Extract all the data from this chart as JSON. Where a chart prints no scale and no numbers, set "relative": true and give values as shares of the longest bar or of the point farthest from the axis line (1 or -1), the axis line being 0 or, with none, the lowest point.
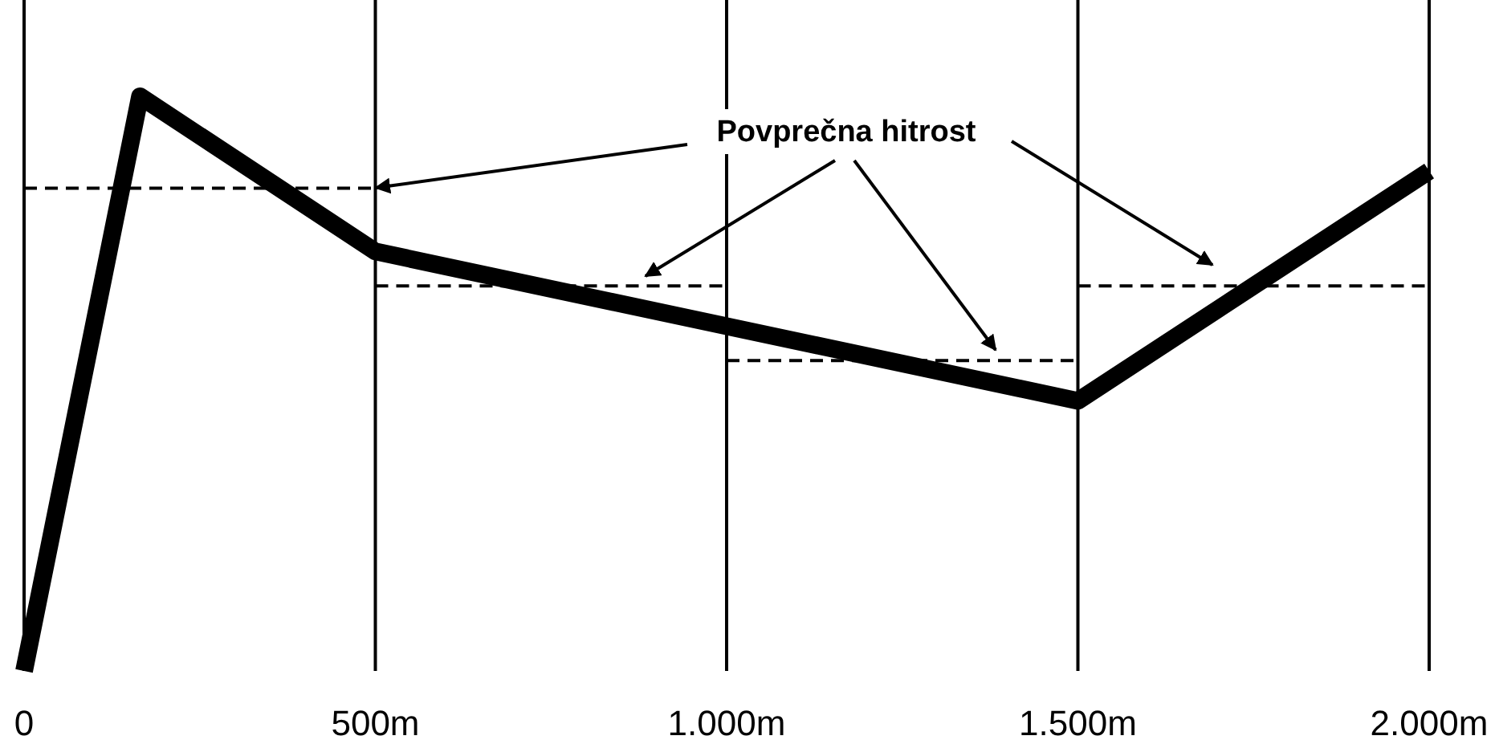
{
  "chart_data": {
    "type": "line",
    "relative": true,
    "xlim": [
      0,
      2000
    ],
    "xticks": [
      0,
      {
        "value": 500,
        "label": "500m"
      },
      {
        "value": 1000,
        "label": "1.000m"
      },
      {
        "value": 1500,
        "label": "1.500m"
      },
      {
        "value": 2000,
        "label": "2.000m"
      }
    ],
    "tick_labels": "x",
    "grid": false,
    "legend": false,
    "marker": "none",
    "series": [
      {
        "color": "#000000",
        "x": [
          0,
          165,
          500,
          1500,
          2000
        ],
        "values": [
          0,
          1,
          0.73,
          0.47,
          0.87
        ],
        "line_style": "solid"
      },
      {
        "color": "#000000",
        "x": [
          0,
          500
        ],
        "values": [
          0.84,
          0.84
        ],
        "line_style": "dashed"
      },
      {
        "color": "#000000",
        "x": [
          500,
          1000
        ],
        "values": [
          0.67,
          0.67
        ],
        "line_style": "dashed"
      },
      {
        "color": "#000000",
        "x": [
          1000,
          1500
        ],
        "values": [
          0.54,
          0.54
        ],
        "line_style": "dashed"
      },
      {
        "color": "#000000",
        "x": [
          1500,
          2000
        ],
        "values": [
          0.67,
          0.67
        ],
        "line_style": "dashed"
      }
    ],
    "ref_lines": [
      {
        "axis": "x",
        "value": 500,
        "color": "#000000"
      },
      {
        "axis": "x",
        "value": 1000,
        "color": "#000000"
      },
      {
        "axis": "x",
        "value": 1500,
        "color": "#000000"
      },
      {
        "axis": "x",
        "value": 2000,
        "color": "#000000"
      }
    ],
    "annotations": [
      "Povprečna hitrost"
    ]
  }
}
